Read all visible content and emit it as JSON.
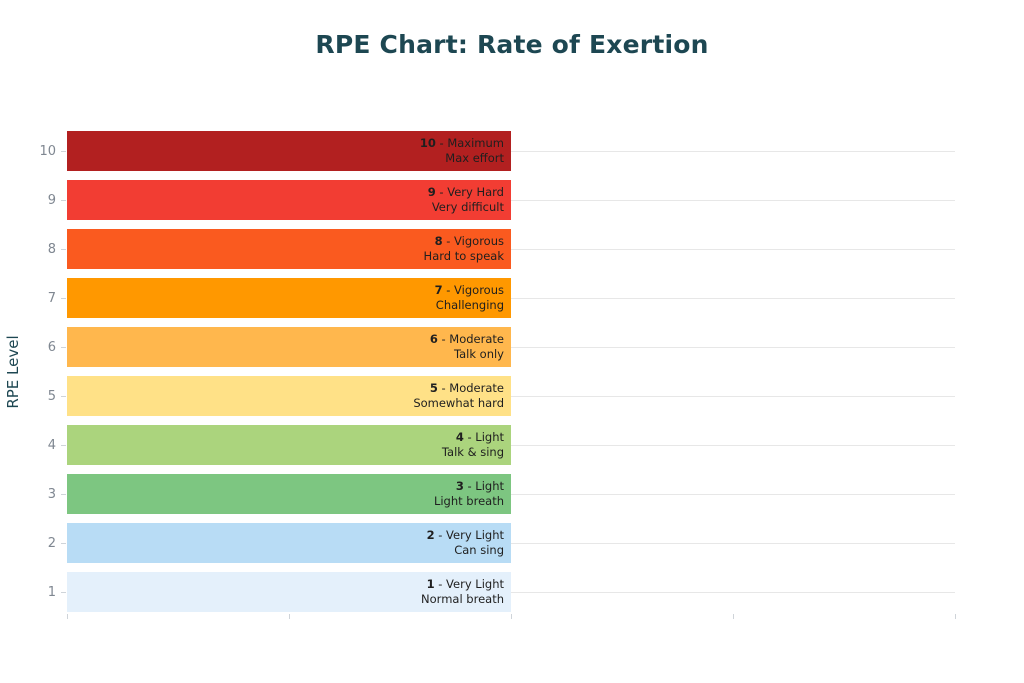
{
  "chart_data": {
    "type": "bar",
    "orientation": "horizontal",
    "title": "RPE Chart: Rate of Exertion",
    "xlabel": "",
    "ylabel": "RPE Level",
    "xlim": [
      0,
      4
    ],
    "x_tick_labels_visible": false,
    "grid": "horizontal",
    "legend": "none",
    "values": [
      2,
      2,
      2,
      2,
      2,
      2,
      2,
      2,
      2,
      2
    ],
    "rows": [
      {
        "level": "10",
        "name": "Maximum",
        "description": "Max effort",
        "color": "#b22020"
      },
      {
        "level": "9",
        "name": "Very Hard",
        "description": "Very difficult",
        "color": "#f23d33"
      },
      {
        "level": "8",
        "name": "Vigorous",
        "description": "Hard to speak",
        "color": "#fa5a1f"
      },
      {
        "level": "7",
        "name": "Vigorous",
        "description": "Challenging",
        "color": "#ff9800"
      },
      {
        "level": "6",
        "name": "Moderate",
        "description": "Talk only",
        "color": "#ffb74d"
      },
      {
        "level": "5",
        "name": "Moderate",
        "description": "Somewhat hard",
        "color": "#ffe187"
      },
      {
        "level": "4",
        "name": "Light",
        "description": "Talk & sing",
        "color": "#abd47d"
      },
      {
        "level": "3",
        "name": "Light",
        "description": "Light breath",
        "color": "#7dc681"
      },
      {
        "level": "2",
        "name": "Very Light",
        "description": "Can sing",
        "color": "#b8dcf5"
      },
      {
        "level": "1",
        "name": "Very Light",
        "description": "Normal breath",
        "color": "#e4f0fb"
      }
    ],
    "label_separator": " - ",
    "colors": {
      "title": "#1d4752",
      "axis_label": "#1d4752",
      "tick_label": "#7f8791",
      "gridline": "#e7e7e7",
      "bar_label_text": "#1f1f1f",
      "background": "#ffffff"
    }
  }
}
